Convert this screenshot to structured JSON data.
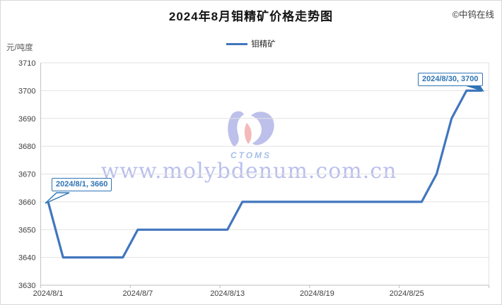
{
  "header": {
    "title": "2024年8月钼精矿价格走势图",
    "copyright": "©中钨在线"
  },
  "legend": {
    "series_label": "钼精矿"
  },
  "y_axis_unit": "元/吨度",
  "watermark": {
    "logo_text": "CTOMS",
    "url_text": "www.molybdenum.com.cn"
  },
  "annotations": [
    {
      "text": "2024/8/1, 3660",
      "date": "2024/8/1",
      "value": 3660
    },
    {
      "text": "2024/8/30, 3700",
      "date": "2024/8/30",
      "value": 3700
    }
  ],
  "colors": {
    "line": "#4276bd",
    "annotation_blue": "#2e74b5",
    "grid": "#e2e2e2",
    "axis": "#c9c9c9",
    "tick_text": "#404040",
    "watermark_blue": "#b3b9ea",
    "logo_lavender": "#b6bae8",
    "logo_pink": "#f2b3b3"
  },
  "chart_data": {
    "type": "line",
    "title": "2024年8月钼精矿价格走势图",
    "ylabel": "元/吨度",
    "ylim": [
      3630,
      3710
    ],
    "y_step": 10,
    "grid": true,
    "legend_position": "top",
    "x": [
      "2024/8/1",
      "2024/8/2",
      "2024/8/3",
      "2024/8/4",
      "2024/8/5",
      "2024/8/6",
      "2024/8/7",
      "2024/8/8",
      "2024/8/9",
      "2024/8/10",
      "2024/8/11",
      "2024/8/12",
      "2024/8/13",
      "2024/8/14",
      "2024/8/15",
      "2024/8/16",
      "2024/8/17",
      "2024/8/18",
      "2024/8/19",
      "2024/8/20",
      "2024/8/21",
      "2024/8/22",
      "2024/8/23",
      "2024/8/24",
      "2024/8/25",
      "2024/8/26",
      "2024/8/27",
      "2024/8/28",
      "2024/8/29",
      "2024/8/30"
    ],
    "x_tick_labels": [
      "2024/8/1",
      "2024/8/7",
      "2024/8/13",
      "2024/8/19",
      "2024/8/25"
    ],
    "x_tick_interval": 6,
    "series": [
      {
        "name": "钼精矿",
        "values": [
          3660,
          3640,
          3640,
          3640,
          3640,
          3640,
          3650,
          3650,
          3650,
          3650,
          3650,
          3650,
          3650,
          3660,
          3660,
          3660,
          3660,
          3660,
          3660,
          3660,
          3660,
          3660,
          3660,
          3660,
          3660,
          3660,
          3670,
          3690,
          3700,
          3700
        ]
      }
    ]
  }
}
